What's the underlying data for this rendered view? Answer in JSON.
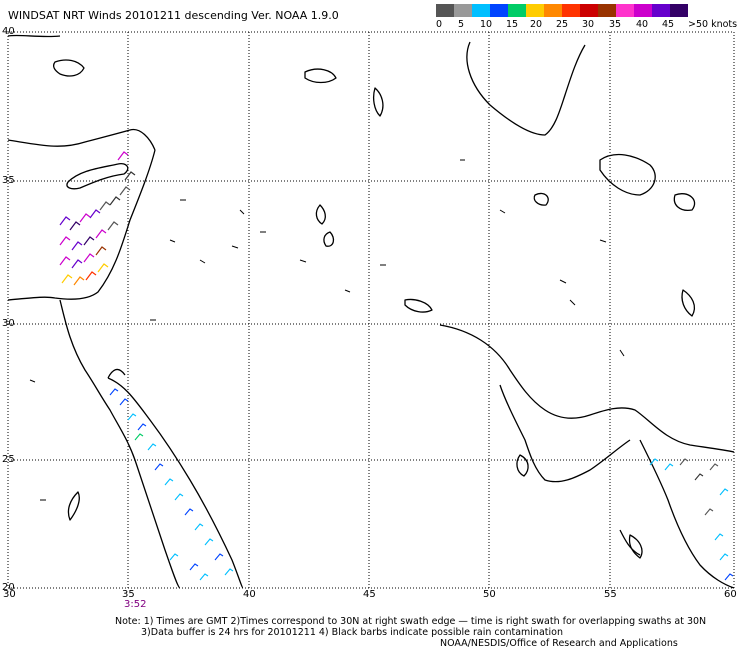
{
  "title": "WINDSAT NRT Winds 20101211 descending  Ver. NOAA 1.9.0",
  "wind_scale": {
    "colors": [
      "#555555",
      "#999999",
      "#00bfff",
      "#0044ff",
      "#00cc66",
      "#ffcc00",
      "#ff8800",
      "#ff3300",
      "#cc0000",
      "#993300",
      "#ff33cc",
      "#cc00cc",
      "#6600cc",
      "#330066"
    ],
    "labels": [
      "0",
      "5",
      "10",
      "15",
      "20",
      "25",
      "30",
      "35",
      "40",
      "45",
      ">50 knots"
    ]
  },
  "lat_labels": [
    "40",
    "35",
    "30",
    "25",
    "20"
  ],
  "lon_labels": [
    "30",
    "35",
    "40",
    "45",
    "50",
    "55",
    "60"
  ],
  "swath_time": "3:52",
  "notes": [
    "Note: 1) Times are GMT 2)Times correspond to 30N at right swath edge — time is right swath for overlapping swaths at 30N",
    "3)Data buffer is 24 hrs for 20101211 4) Black barbs indicate possible rain contamination",
    "NOAA/NESDIS/Office of Research and Applications"
  ]
}
